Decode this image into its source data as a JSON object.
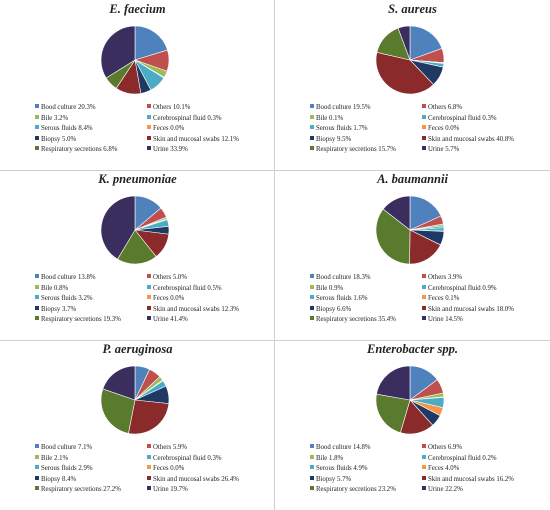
{
  "legend_labels": [
    "Bood culture",
    "Others",
    "Bile",
    "Cerebrospinal fluid",
    "Serous fluids",
    "Feces",
    "Biopsy",
    "Skin and mucosal swabs",
    "Respiratory secretions",
    "Urine"
  ],
  "colors": [
    "#4f81bd",
    "#c0504d",
    "#9bbb59",
    "#4bacc6",
    "#4bacc6",
    "#f79646",
    "#1f3864",
    "#8b2a2a",
    "#5a7a2e",
    "#3a2e5f"
  ],
  "chart_data": [
    {
      "type": "pie",
      "title": "E. faecium",
      "categories": [
        "Bood culture",
        "Others",
        "Bile",
        "Cerebrospinal fluid",
        "Serous fluids",
        "Feces",
        "Biopsy",
        "Skin and mucosal swabs",
        "Respiratory secretions",
        "Urine"
      ],
      "values": [
        20.3,
        10.1,
        3.2,
        0.3,
        8.4,
        0.0,
        5.0,
        12.1,
        6.8,
        33.9
      ],
      "value_labels": [
        "20.3%",
        "10.1%",
        "3.2%",
        "0.3%",
        "8.4%",
        "0.0%",
        "5.0%",
        "12.1%",
        "6.8%",
        "33.9%"
      ]
    },
    {
      "type": "pie",
      "title": "S. aureus",
      "categories": [
        "Bood culture",
        "Others",
        "Bile",
        "Cerebrospinal fluid",
        "Serous fluids",
        "Feces",
        "Biopsy",
        "Skin and mucosal swabs",
        "Respiratory secretions",
        "Urine"
      ],
      "values": [
        19.5,
        6.8,
        0.1,
        0.3,
        1.7,
        0.0,
        9.5,
        40.8,
        15.7,
        5.7
      ],
      "value_labels": [
        "19.5%",
        "6.8%",
        "0.1%",
        "0.3%",
        "1.7%",
        "0.0%",
        "9.5%",
        "40.8%",
        "15.7%",
        "5.7%"
      ]
    },
    {
      "type": "pie",
      "title": "K. pneumoniae",
      "categories": [
        "Bood culture",
        "Others",
        "Bile",
        "Cerebrospinal fluid",
        "Serous fluids",
        "Feces",
        "Biopsy",
        "Skin and mucosal swabs",
        "Respiratory secretions",
        "Urine"
      ],
      "values": [
        13.8,
        5.0,
        0.8,
        0.5,
        3.2,
        0.0,
        3.7,
        12.3,
        19.3,
        41.4
      ],
      "value_labels": [
        "13.8%",
        "5.0%",
        "0.8%",
        "0.5%",
        "3.2%",
        "0.0%",
        "3.7%",
        "12.3%",
        "19.3%",
        "41.4%"
      ]
    },
    {
      "type": "pie",
      "title": "A. baumannii",
      "categories": [
        "Bood culture",
        "Others",
        "Bile",
        "Cerebrospinal fluid",
        "Serous fluids",
        "Feces",
        "Biopsy",
        "Skin and mucosal swabs",
        "Respiratory secretions",
        "Urine"
      ],
      "values": [
        18.3,
        3.9,
        0.9,
        0.9,
        1.6,
        0.1,
        6.6,
        18.0,
        35.4,
        14.5
      ],
      "value_labels": [
        "18.3%",
        "3.9%",
        "0.9%",
        "0.9%",
        "1.6%",
        "0.1%",
        "6.6%",
        "18.0%",
        "35.4%",
        "14.5%"
      ]
    },
    {
      "type": "pie",
      "title": "P. aeruginosa",
      "categories": [
        "Bood culture",
        "Others",
        "Bile",
        "Cerebrospinal fluid",
        "Serous fluids",
        "Feces",
        "Biopsy",
        "Skin and mucosal swabs",
        "Respiratory secretions",
        "Urine"
      ],
      "values": [
        7.1,
        5.9,
        2.1,
        0.3,
        2.9,
        0.0,
        8.4,
        26.4,
        27.2,
        19.7
      ],
      "value_labels": [
        "7.1%",
        "5.9%",
        "2.1%",
        "0.3%",
        "2.9%",
        "0.0%",
        "8.4%",
        "26.4%",
        "27.2%",
        "19.7%"
      ]
    },
    {
      "type": "pie",
      "title": "Enterobacter spp.",
      "categories": [
        "Bood culture",
        "Others",
        "Bile",
        "Cerebrospinal fluid",
        "Serous fluids",
        "Feces",
        "Biopsy",
        "Skin and mucosal swabs",
        "Respiratory secretions",
        "Urine"
      ],
      "values": [
        14.8,
        6.9,
        1.8,
        0.2,
        4.9,
        4.0,
        5.7,
        16.2,
        23.2,
        22.2
      ],
      "value_labels": [
        "14.8%",
        "6.9%",
        "1.8%",
        "0.2%",
        "4.9%",
        "4.0%",
        "5.7%",
        "16.2%",
        "23.2%",
        "22.2%"
      ]
    }
  ]
}
